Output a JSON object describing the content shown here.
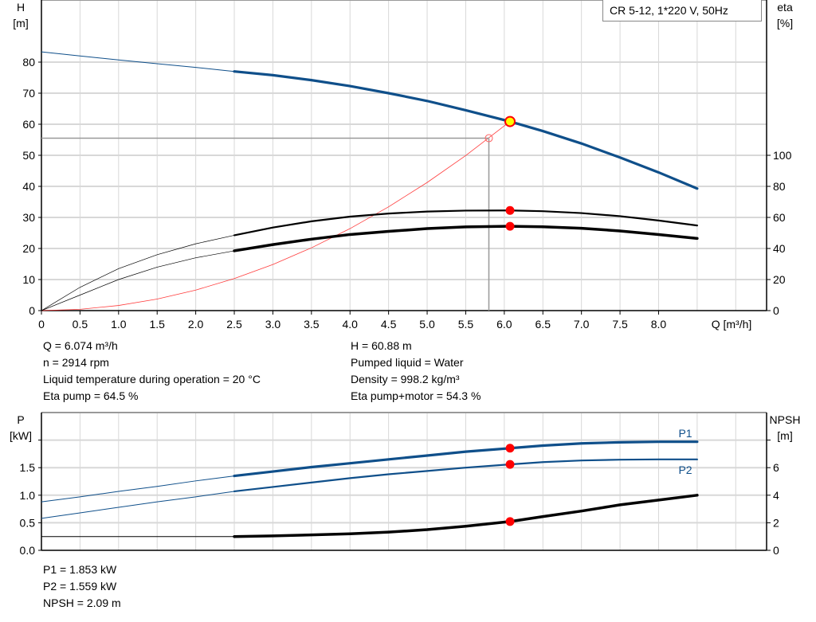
{
  "chart_data": [
    {
      "type": "line",
      "title": "CR 5-12, 1*220 V, 50Hz",
      "xlabel": "Q [m³/h]",
      "ylabel_left": [
        "H",
        "[m]"
      ],
      "ylabel_right": [
        "eta",
        "[%]"
      ],
      "xlim": [
        0,
        9.4
      ],
      "ylim_left": [
        0,
        100
      ],
      "ylim_right": [
        0,
        200
      ],
      "x_ticks": [
        "0",
        "0.5",
        "1.0",
        "1.5",
        "2.0",
        "2.5",
        "3.0",
        "3.5",
        "4.0",
        "4.5",
        "5.0",
        "5.5",
        "6.0",
        "6.5",
        "7.0",
        "7.5",
        "8.0"
      ],
      "y_ticks_left": [
        "0",
        "10",
        "20",
        "30",
        "40",
        "50",
        "60",
        "70",
        "80"
      ],
      "y_ticks_right": [
        "0",
        "20",
        "40",
        "60",
        "80",
        "100"
      ],
      "grid": true,
      "x": [
        0,
        0.5,
        1,
        1.5,
        2,
        2.5,
        3,
        3.5,
        4,
        4.5,
        5,
        5.5,
        6.074,
        6.5,
        7,
        7.5,
        8,
        8.5
      ],
      "series": [
        {
          "key": "H",
          "axis": "left",
          "color": "#0f4f8a",
          "values": [
            83.3,
            82,
            80.7,
            79.5,
            78.3,
            77,
            75.8,
            74.2,
            72.3,
            70,
            67.5,
            64.5,
            60.88,
            57.8,
            53.8,
            49.3,
            44.5,
            39.3
          ]
        },
        {
          "key": "eta_pump",
          "axis": "right",
          "color": "#000000",
          "values": [
            0,
            15,
            27,
            36,
            43,
            48.5,
            53.5,
            57.5,
            60.5,
            62.5,
            63.8,
            64.4,
            64.5,
            64,
            62.8,
            60.8,
            58,
            54.8
          ]
        },
        {
          "key": "eta_pump_motor",
          "axis": "right",
          "color": "#000000",
          "values": [
            0,
            10,
            20,
            28,
            34,
            38.5,
            42.5,
            46,
            49,
            51,
            52.8,
            53.9,
            54.3,
            54,
            53,
            51.3,
            49,
            46.5
          ]
        }
      ],
      "system_curve": {
        "color": "#ff3b3b",
        "x": [
          0,
          0.5,
          1,
          1.5,
          2,
          2.5,
          3,
          3.5,
          4,
          4.5,
          5,
          5.5,
          6.074
        ],
        "values": [
          0,
          0.41,
          1.65,
          3.71,
          6.6,
          10.31,
          14.85,
          20.21,
          26.4,
          33.41,
          41.25,
          49.91,
          60.88
        ]
      },
      "duty_point": {
        "Q": 6.074,
        "H": 60.88,
        "eta_pump": 64.5,
        "eta_pump_motor": 54.3,
        "color": "#ffff00"
      },
      "requested_point": {
        "Q": 5.8,
        "H": 55.5
      }
    },
    {
      "type": "line",
      "ylabel_left": [
        "P",
        "[kW]"
      ],
      "ylabel_right": [
        "NPSH",
        "[m]"
      ],
      "xlim": [
        0,
        9.4
      ],
      "ylim_left": [
        0,
        2.5
      ],
      "ylim_right": [
        0,
        10
      ],
      "y_ticks_left": [
        "0.0",
        "0.5",
        "1.0",
        "1.5",
        ""
      ],
      "y_ticks_right": [
        "0",
        "2",
        "4",
        "6",
        ""
      ],
      "grid": true,
      "x": [
        0,
        0.5,
        1,
        1.5,
        2,
        2.5,
        3,
        3.5,
        4,
        4.5,
        5,
        5.5,
        6.074,
        6.5,
        7,
        7.5,
        8,
        8.5
      ],
      "series": [
        {
          "name": "P1",
          "axis": "left",
          "color": "#0f4f8a",
          "values": [
            0.88,
            0.97,
            1.07,
            1.16,
            1.26,
            1.35,
            1.43,
            1.51,
            1.58,
            1.65,
            1.72,
            1.79,
            1.853,
            1.9,
            1.94,
            1.96,
            1.97,
            1.97
          ]
        },
        {
          "name": "P2",
          "axis": "left",
          "color": "#0f4f8a",
          "values": [
            0.58,
            0.68,
            0.78,
            0.88,
            0.97,
            1.07,
            1.15,
            1.23,
            1.31,
            1.38,
            1.44,
            1.5,
            1.559,
            1.6,
            1.63,
            1.645,
            1.65,
            1.65
          ]
        },
        {
          "key": "NPSH",
          "axis": "right",
          "color": "#000000",
          "values": [
            1,
            1,
            1,
            1,
            1,
            1,
            1.05,
            1.12,
            1.2,
            1.32,
            1.5,
            1.75,
            2.09,
            2.45,
            2.85,
            3.3,
            3.65,
            4.0
          ]
        }
      ],
      "duty_point": {
        "Q": 6.074,
        "P1": 1.853,
        "P2": 1.559,
        "NPSH": 2.09
      }
    }
  ],
  "readouts_top_left": [
    "Q = 6.074 m³/h",
    "n = 2914 rpm",
    "Liquid temperature during operation = 20 °C",
    "Eta pump = 64.5 %"
  ],
  "readouts_top_right": [
    "H = 60.88 m",
    "Pumped liquid = Water",
    "Density = 998.2 kg/m³",
    "Eta pump+motor = 54.3 %"
  ],
  "readouts_bottom": [
    "P1 = 1.853 kW",
    "P2 = 1.559 kW",
    "NPSH = 2.09 m"
  ]
}
